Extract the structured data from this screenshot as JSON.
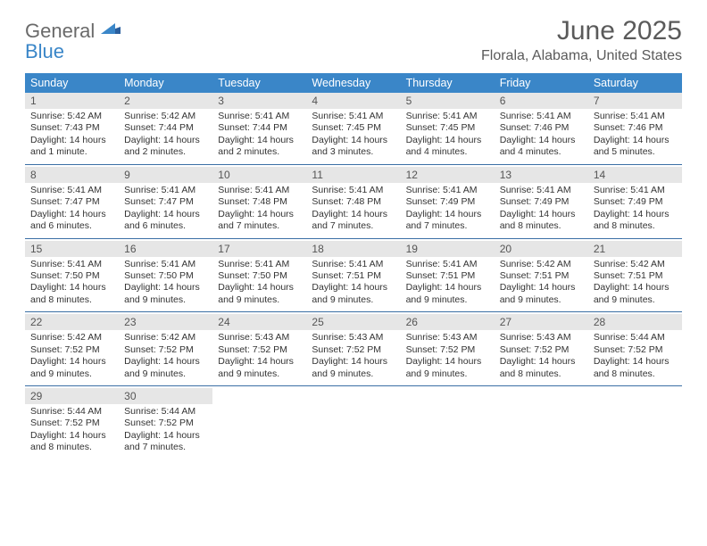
{
  "logo": {
    "word1": "General",
    "word2": "Blue"
  },
  "title": "June 2025",
  "subtitle": "Florala, Alabama, United States",
  "colors": {
    "header_bg": "#3a86c8",
    "header_text": "#ffffff",
    "daynum_bg": "#e6e6e6",
    "week_divider": "#3a6fa5",
    "text": "#333333",
    "title_text": "#5a5a5a"
  },
  "day_names": [
    "Sunday",
    "Monday",
    "Tuesday",
    "Wednesday",
    "Thursday",
    "Friday",
    "Saturday"
  ],
  "weeks": [
    [
      {
        "day": "1",
        "sunrise": "Sunrise: 5:42 AM",
        "sunset": "Sunset: 7:43 PM",
        "daylight": "Daylight: 14 hours and 1 minute."
      },
      {
        "day": "2",
        "sunrise": "Sunrise: 5:42 AM",
        "sunset": "Sunset: 7:44 PM",
        "daylight": "Daylight: 14 hours and 2 minutes."
      },
      {
        "day": "3",
        "sunrise": "Sunrise: 5:41 AM",
        "sunset": "Sunset: 7:44 PM",
        "daylight": "Daylight: 14 hours and 2 minutes."
      },
      {
        "day": "4",
        "sunrise": "Sunrise: 5:41 AM",
        "sunset": "Sunset: 7:45 PM",
        "daylight": "Daylight: 14 hours and 3 minutes."
      },
      {
        "day": "5",
        "sunrise": "Sunrise: 5:41 AM",
        "sunset": "Sunset: 7:45 PM",
        "daylight": "Daylight: 14 hours and 4 minutes."
      },
      {
        "day": "6",
        "sunrise": "Sunrise: 5:41 AM",
        "sunset": "Sunset: 7:46 PM",
        "daylight": "Daylight: 14 hours and 4 minutes."
      },
      {
        "day": "7",
        "sunrise": "Sunrise: 5:41 AM",
        "sunset": "Sunset: 7:46 PM",
        "daylight": "Daylight: 14 hours and 5 minutes."
      }
    ],
    [
      {
        "day": "8",
        "sunrise": "Sunrise: 5:41 AM",
        "sunset": "Sunset: 7:47 PM",
        "daylight": "Daylight: 14 hours and 6 minutes."
      },
      {
        "day": "9",
        "sunrise": "Sunrise: 5:41 AM",
        "sunset": "Sunset: 7:47 PM",
        "daylight": "Daylight: 14 hours and 6 minutes."
      },
      {
        "day": "10",
        "sunrise": "Sunrise: 5:41 AM",
        "sunset": "Sunset: 7:48 PM",
        "daylight": "Daylight: 14 hours and 7 minutes."
      },
      {
        "day": "11",
        "sunrise": "Sunrise: 5:41 AM",
        "sunset": "Sunset: 7:48 PM",
        "daylight": "Daylight: 14 hours and 7 minutes."
      },
      {
        "day": "12",
        "sunrise": "Sunrise: 5:41 AM",
        "sunset": "Sunset: 7:49 PM",
        "daylight": "Daylight: 14 hours and 7 minutes."
      },
      {
        "day": "13",
        "sunrise": "Sunrise: 5:41 AM",
        "sunset": "Sunset: 7:49 PM",
        "daylight": "Daylight: 14 hours and 8 minutes."
      },
      {
        "day": "14",
        "sunrise": "Sunrise: 5:41 AM",
        "sunset": "Sunset: 7:49 PM",
        "daylight": "Daylight: 14 hours and 8 minutes."
      }
    ],
    [
      {
        "day": "15",
        "sunrise": "Sunrise: 5:41 AM",
        "sunset": "Sunset: 7:50 PM",
        "daylight": "Daylight: 14 hours and 8 minutes."
      },
      {
        "day": "16",
        "sunrise": "Sunrise: 5:41 AM",
        "sunset": "Sunset: 7:50 PM",
        "daylight": "Daylight: 14 hours and 9 minutes."
      },
      {
        "day": "17",
        "sunrise": "Sunrise: 5:41 AM",
        "sunset": "Sunset: 7:50 PM",
        "daylight": "Daylight: 14 hours and 9 minutes."
      },
      {
        "day": "18",
        "sunrise": "Sunrise: 5:41 AM",
        "sunset": "Sunset: 7:51 PM",
        "daylight": "Daylight: 14 hours and 9 minutes."
      },
      {
        "day": "19",
        "sunrise": "Sunrise: 5:41 AM",
        "sunset": "Sunset: 7:51 PM",
        "daylight": "Daylight: 14 hours and 9 minutes."
      },
      {
        "day": "20",
        "sunrise": "Sunrise: 5:42 AM",
        "sunset": "Sunset: 7:51 PM",
        "daylight": "Daylight: 14 hours and 9 minutes."
      },
      {
        "day": "21",
        "sunrise": "Sunrise: 5:42 AM",
        "sunset": "Sunset: 7:51 PM",
        "daylight": "Daylight: 14 hours and 9 minutes."
      }
    ],
    [
      {
        "day": "22",
        "sunrise": "Sunrise: 5:42 AM",
        "sunset": "Sunset: 7:52 PM",
        "daylight": "Daylight: 14 hours and 9 minutes."
      },
      {
        "day": "23",
        "sunrise": "Sunrise: 5:42 AM",
        "sunset": "Sunset: 7:52 PM",
        "daylight": "Daylight: 14 hours and 9 minutes."
      },
      {
        "day": "24",
        "sunrise": "Sunrise: 5:43 AM",
        "sunset": "Sunset: 7:52 PM",
        "daylight": "Daylight: 14 hours and 9 minutes."
      },
      {
        "day": "25",
        "sunrise": "Sunrise: 5:43 AM",
        "sunset": "Sunset: 7:52 PM",
        "daylight": "Daylight: 14 hours and 9 minutes."
      },
      {
        "day": "26",
        "sunrise": "Sunrise: 5:43 AM",
        "sunset": "Sunset: 7:52 PM",
        "daylight": "Daylight: 14 hours and 9 minutes."
      },
      {
        "day": "27",
        "sunrise": "Sunrise: 5:43 AM",
        "sunset": "Sunset: 7:52 PM",
        "daylight": "Daylight: 14 hours and 8 minutes."
      },
      {
        "day": "28",
        "sunrise": "Sunrise: 5:44 AM",
        "sunset": "Sunset: 7:52 PM",
        "daylight": "Daylight: 14 hours and 8 minutes."
      }
    ],
    [
      {
        "day": "29",
        "sunrise": "Sunrise: 5:44 AM",
        "sunset": "Sunset: 7:52 PM",
        "daylight": "Daylight: 14 hours and 8 minutes."
      },
      {
        "day": "30",
        "sunrise": "Sunrise: 5:44 AM",
        "sunset": "Sunset: 7:52 PM",
        "daylight": "Daylight: 14 hours and 7 minutes."
      },
      null,
      null,
      null,
      null,
      null
    ]
  ]
}
